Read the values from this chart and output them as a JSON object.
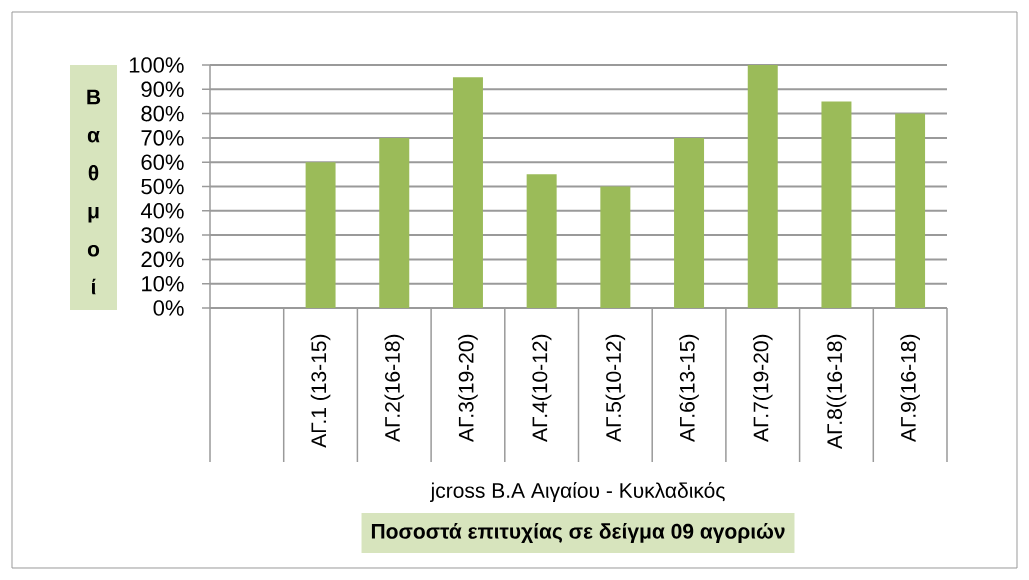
{
  "chart_data": {
    "type": "bar",
    "title": "Ποσοστά επιτυχίας σε δείγμα 09 αγοριών",
    "xlabel": "jcross Β.Α Αιγαίου - Κυκλαδικός",
    "ylabel": "Βαθμοί",
    "categories": [
      null,
      "ΑΓ.1 (13-15)",
      "ΑΓ.2(16-18)",
      "ΑΓ.3(19-20)",
      "ΑΓ.4(10-12)",
      "ΑΓ.5(10-12)",
      "ΑΓ.6(13-15)",
      "ΑΓ.7(19-20)",
      "ΑΓ.8((16-18)",
      "ΑΓ.9(16-18)"
    ],
    "values": [
      null,
      60,
      70,
      95,
      55,
      50,
      70,
      100,
      85,
      80
    ],
    "color": "#9bbb59",
    "ylim": [
      0,
      100
    ],
    "yticks": [
      {
        "value": 0,
        "label": "0%"
      },
      {
        "value": 10,
        "label": "10%"
      },
      {
        "value": 20,
        "label": "20%"
      },
      {
        "value": 30,
        "label": "30%"
      },
      {
        "value": 40,
        "label": "40%"
      },
      {
        "value": 50,
        "label": "50%"
      },
      {
        "value": 60,
        "label": "60%"
      },
      {
        "value": 70,
        "label": "70%"
      },
      {
        "value": 80,
        "label": "80%"
      },
      {
        "value": 90,
        "label": "90%"
      },
      {
        "value": 100,
        "label": "100%"
      }
    ],
    "grid": "y"
  }
}
